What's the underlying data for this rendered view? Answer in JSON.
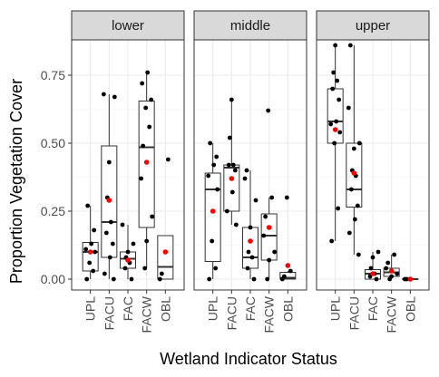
{
  "chart_data": {
    "type": "box",
    "xlabel": "Wetland Indicator Status",
    "ylabel": "Proportion Vegetation Cover",
    "ylim": [
      -0.04,
      0.88
    ],
    "yticks": [
      0.0,
      0.25,
      0.5,
      0.75
    ],
    "ytick_labels": [
      "0.00",
      "0.25",
      "0.50",
      "0.75"
    ],
    "categories": [
      "UPL",
      "FACU",
      "FAC",
      "FACW",
      "OBL"
    ],
    "colors": {
      "point": "#000000",
      "mean": "#ff0000",
      "strip": "#d9d9d9",
      "grid": "#ebebeb"
    },
    "panels": [
      {
        "name": "lower",
        "groups": [
          {
            "category": "UPL",
            "q1": 0.03,
            "median": 0.1,
            "q3": 0.135,
            "low": 0.0,
            "high": 0.27,
            "mean": 0.1,
            "points": [
              0.0,
              0.03,
              0.06,
              0.1,
              0.11,
              0.13,
              0.18,
              0.27
            ]
          },
          {
            "category": "FACU",
            "q1": 0.08,
            "median": 0.21,
            "q3": 0.49,
            "low": 0.0,
            "high": 0.68,
            "mean": 0.29,
            "points": [
              0.0,
              0.02,
              0.08,
              0.13,
              0.17,
              0.21,
              0.3,
              0.43,
              0.67,
              0.68
            ]
          },
          {
            "category": "FAC",
            "q1": 0.04,
            "median": 0.075,
            "q3": 0.1,
            "low": 0.0,
            "high": 0.2,
            "mean": 0.07,
            "points": [
              0.0,
              0.04,
              0.06,
              0.08,
              0.1,
              0.13,
              0.2
            ]
          },
          {
            "category": "FACW",
            "q1": 0.19,
            "median": 0.485,
            "q3": 0.655,
            "low": 0.04,
            "high": 0.76,
            "mean": 0.43,
            "points": [
              0.04,
              0.14,
              0.23,
              0.37,
              0.49,
              0.56,
              0.63,
              0.66,
              0.72,
              0.76
            ]
          },
          {
            "category": "OBL",
            "q1": 0.0,
            "median": 0.045,
            "q3": 0.16,
            "low": 0.0,
            "high": 0.16,
            "mean": 0.1,
            "points": [
              0.0,
              0.02,
              0.44
            ]
          }
        ]
      },
      {
        "name": "middle",
        "groups": [
          {
            "category": "UPL",
            "q1": 0.065,
            "median": 0.33,
            "q3": 0.39,
            "low": 0.0,
            "high": 0.5,
            "mean": 0.25,
            "points": [
              0.0,
              0.04,
              0.14,
              0.33,
              0.38,
              0.42,
              0.45,
              0.5
            ]
          },
          {
            "category": "FACU",
            "q1": 0.25,
            "median": 0.41,
            "q3": 0.42,
            "low": 0.2,
            "high": 0.66,
            "mean": 0.37,
            "points": [
              0.2,
              0.25,
              0.32,
              0.4,
              0.42,
              0.42,
              0.52,
              0.66
            ]
          },
          {
            "category": "FAC",
            "q1": 0.04,
            "median": 0.08,
            "q3": 0.19,
            "low": 0.0,
            "high": 0.4,
            "mean": 0.14,
            "points": [
              0.0,
              0.04,
              0.08,
              0.1,
              0.19,
              0.29,
              0.37,
              0.4
            ]
          },
          {
            "category": "FACW",
            "q1": 0.07,
            "median": 0.16,
            "q3": 0.24,
            "low": 0.0,
            "high": 0.3,
            "mean": 0.19,
            "points": [
              0.0,
              0.07,
              0.1,
              0.16,
              0.23,
              0.3,
              0.62
            ]
          },
          {
            "category": "OBL",
            "q1": 0.0,
            "median": 0.005,
            "q3": 0.025,
            "low": 0.0,
            "high": 0.03,
            "mean": 0.05,
            "points": [
              0.0,
              0.01,
              0.03,
              0.3
            ]
          }
        ]
      },
      {
        "name": "upper",
        "groups": [
          {
            "category": "UPL",
            "q1": 0.5,
            "median": 0.58,
            "q3": 0.7,
            "low": 0.14,
            "high": 0.86,
            "mean": 0.55,
            "points": [
              0.14,
              0.26,
              0.5,
              0.54,
              0.57,
              0.58,
              0.66,
              0.7,
              0.73,
              0.76,
              0.86
            ]
          },
          {
            "category": "FACU",
            "q1": 0.265,
            "median": 0.33,
            "q3": 0.5,
            "low": 0.09,
            "high": 0.86,
            "mean": 0.39,
            "points": [
              0.09,
              0.17,
              0.22,
              0.27,
              0.33,
              0.38,
              0.4,
              0.48,
              0.5,
              0.63,
              0.86
            ]
          },
          {
            "category": "FAC",
            "q1": 0.0,
            "median": 0.02,
            "q3": 0.035,
            "low": 0.0,
            "high": 0.1,
            "mean": 0.02,
            "points": [
              0.0,
              0.01,
              0.02,
              0.04,
              0.08,
              0.1
            ]
          },
          {
            "category": "FACW",
            "q1": 0.01,
            "median": 0.025,
            "q3": 0.04,
            "low": 0.0,
            "high": 0.09,
            "mean": 0.03,
            "points": [
              0.0,
              0.01,
              0.02,
              0.04,
              0.06,
              0.09
            ]
          },
          {
            "category": "OBL",
            "q1": 0.0,
            "median": 0.0,
            "q3": 0.0,
            "low": 0.0,
            "high": 0.0,
            "mean": 0.0,
            "points": [
              0.0,
              0.0
            ]
          }
        ]
      }
    ]
  }
}
